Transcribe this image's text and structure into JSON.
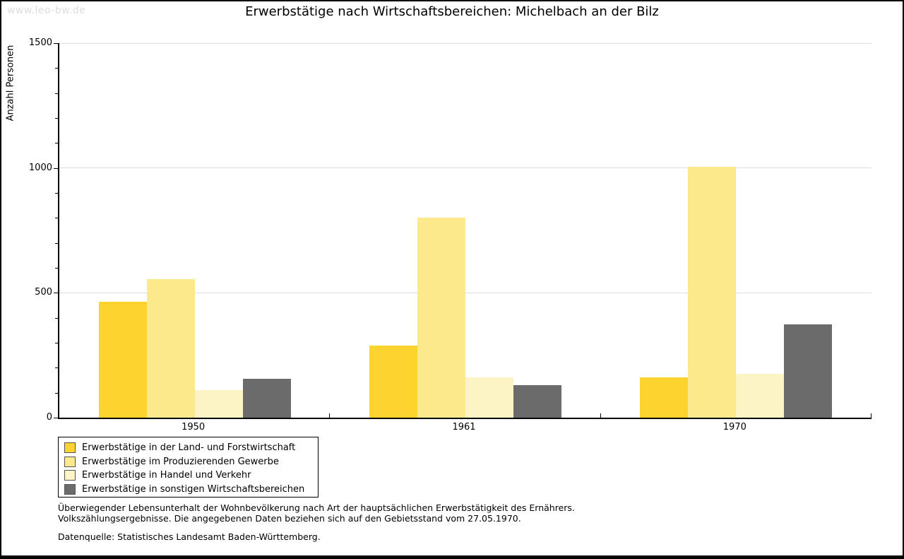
{
  "watermark": "www.leo-bw.de",
  "title": "Erwerbstätige nach Wirtschaftsbereichen: Michelbach an der Bilz",
  "chart_data": {
    "type": "bar",
    "title": "Erwerbstätige nach Wirtschaftsbereichen: Michelbach an der Bilz",
    "categories": [
      "1950",
      "1961",
      "1970"
    ],
    "series": [
      {
        "name": "Erwerbstätige in der Land- und Forstwirtschaft",
        "color": "#fcd32f",
        "values": [
          465,
          290,
          160
        ]
      },
      {
        "name": "Erwerbstätige im Produzierenden Gewerbe",
        "color": "#fce98b",
        "values": [
          555,
          800,
          1005
        ]
      },
      {
        "name": "Erwerbstätige in Handel und Verkehr",
        "color": "#fdf4c5",
        "values": [
          110,
          160,
          175
        ]
      },
      {
        "name": "Erwerbstätige in sonstigen Wirtschaftsbereichen",
        "color": "#6b6b6b",
        "values": [
          155,
          130,
          375
        ]
      }
    ],
    "xlabel": "",
    "ylabel": "Anzahl Personen",
    "ylim": [
      0,
      1500
    ],
    "y_major_ticks": [
      0,
      500,
      1000,
      1500
    ],
    "y_minor_step": 100,
    "grid": true,
    "gridline_color": "#dedede",
    "legend_position": "bottom-left"
  },
  "footnotes": [
    "Überwiegender Lebensunterhalt der Wohnbevölkerung nach Art der hauptsächlichen Erwerbstätigkeit des Ernährers.",
    "Volkszählungsergebnisse. Die angegebenen Daten beziehen sich auf den Gebietsstand vom 27.05.1970."
  ],
  "source": "Datenquelle: Statistisches Landesamt Baden-Württemberg."
}
